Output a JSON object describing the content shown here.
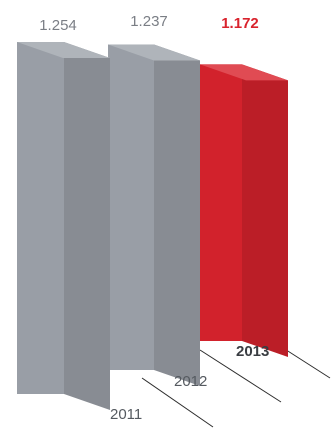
{
  "chart_data": {
    "type": "bar",
    "title": "",
    "xlabel": "",
    "ylabel": "",
    "categories": [
      "2011",
      "2012",
      "2013"
    ],
    "values": [
      1254,
      1237,
      1172
    ],
    "value_labels": [
      "1.254",
      "1.237",
      "1.172"
    ],
    "highlight": "2013",
    "highlight_color": "#d9232d",
    "bar_color": "#9ea3ab",
    "grid": false,
    "legend": "none"
  }
}
